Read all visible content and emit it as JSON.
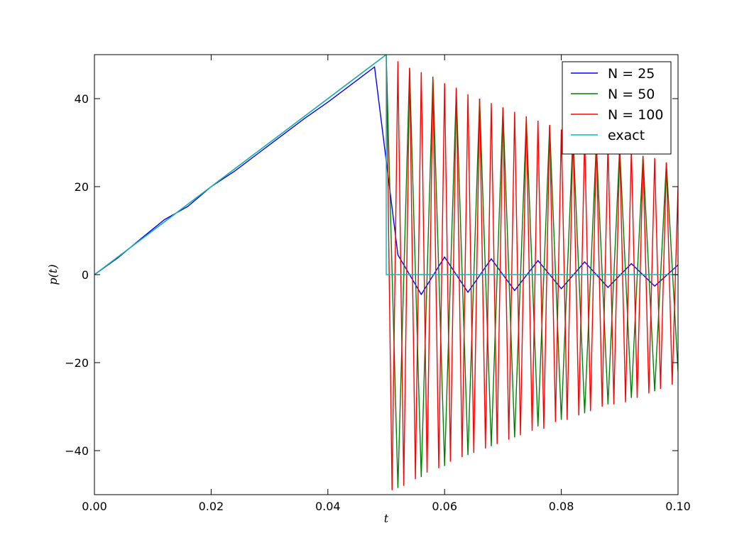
{
  "chart_data": {
    "type": "line",
    "title": "",
    "xlabel": "t",
    "ylabel": "p(t)",
    "xlim": [
      0.0,
      0.1
    ],
    "ylim": [
      -50,
      50
    ],
    "x_ticks": [
      "0.00",
      "0.02",
      "0.04",
      "0.06",
      "0.08",
      "0.10"
    ],
    "y_ticks": [
      "−40",
      "−20",
      "0",
      "20",
      "40"
    ],
    "x_tick_values": [
      0.0,
      0.02,
      0.04,
      0.06,
      0.08,
      0.1
    ],
    "y_tick_values": [
      -40,
      -20,
      0,
      20,
      40
    ],
    "grid": false,
    "legend_position": "top-right",
    "series": [
      {
        "name": "N = 25",
        "color": "#0000ff",
        "x": [
          0.0,
          0.004,
          0.008,
          0.012,
          0.016,
          0.02,
          0.024,
          0.028,
          0.032,
          0.036,
          0.04,
          0.044,
          0.048,
          0.052,
          0.056,
          0.06,
          0.064,
          0.068,
          0.072,
          0.076,
          0.08,
          0.084,
          0.088,
          0.092,
          0.096,
          0.1
        ],
        "y": [
          0,
          3.8,
          8.2,
          12.5,
          15.5,
          20,
          23.5,
          27.5,
          31.5,
          35.5,
          39.2,
          43.2,
          47.2,
          4.5,
          -4.5,
          4.0,
          -4.0,
          3.6,
          -3.6,
          3.2,
          -3.2,
          2.9,
          -2.9,
          2.5,
          -2.6,
          2.2
        ]
      },
      {
        "name": "N = 50",
        "color": "#008000",
        "x": [
          0.0,
          0.05,
          0.052,
          0.054,
          0.056,
          0.058,
          0.06,
          0.062,
          0.064,
          0.066,
          0.068,
          0.07,
          0.072,
          0.074,
          0.076,
          0.078,
          0.08,
          0.082,
          0.084,
          0.086,
          0.088,
          0.09,
          0.092,
          0.094,
          0.096,
          0.098,
          0.1
        ],
        "y": [
          0,
          50,
          -48.5,
          47,
          -46,
          45,
          -43.5,
          42,
          -41,
          40,
          -39,
          38,
          -37,
          35.5,
          -34.5,
          34,
          -33,
          32,
          -31.5,
          30,
          -29.5,
          29,
          -28,
          27,
          -26.5,
          25.5,
          -22
        ]
      },
      {
        "name": "N = 100",
        "color": "#ff0000",
        "x": [
          0.0,
          0.05,
          0.051,
          0.052,
          0.053,
          0.054,
          0.055,
          0.056,
          0.057,
          0.058,
          0.059,
          0.06,
          0.061,
          0.062,
          0.063,
          0.064,
          0.065,
          0.066,
          0.067,
          0.068,
          0.069,
          0.07,
          0.071,
          0.072,
          0.073,
          0.074,
          0.075,
          0.076,
          0.077,
          0.078,
          0.079,
          0.08,
          0.081,
          0.082,
          0.083,
          0.084,
          0.085,
          0.086,
          0.087,
          0.088,
          0.089,
          0.09,
          0.091,
          0.092,
          0.093,
          0.094,
          0.095,
          0.096,
          0.097,
          0.098,
          0.099,
          0.1
        ],
        "y": [
          0,
          50,
          -49,
          48.5,
          -48,
          47,
          -46.5,
          46,
          -45,
          44.5,
          -44,
          43.5,
          -42.5,
          42.5,
          -41.5,
          41,
          -40.5,
          40,
          -39.5,
          39,
          -38.5,
          38,
          -37.5,
          37,
          -36.5,
          36,
          -35.5,
          35,
          -35,
          34,
          -33.5,
          33,
          -33,
          32.5,
          -32,
          31.5,
          -31,
          30.5,
          -30,
          30,
          -29.5,
          29,
          -29,
          28.5,
          -28,
          27,
          -27,
          26.5,
          -26,
          25.5,
          -25,
          20
        ]
      },
      {
        "name": "exact",
        "color": "#00bfbf",
        "x": [
          0.0,
          0.05,
          0.05,
          0.1
        ],
        "y": [
          0,
          50,
          0,
          0
        ]
      }
    ]
  }
}
